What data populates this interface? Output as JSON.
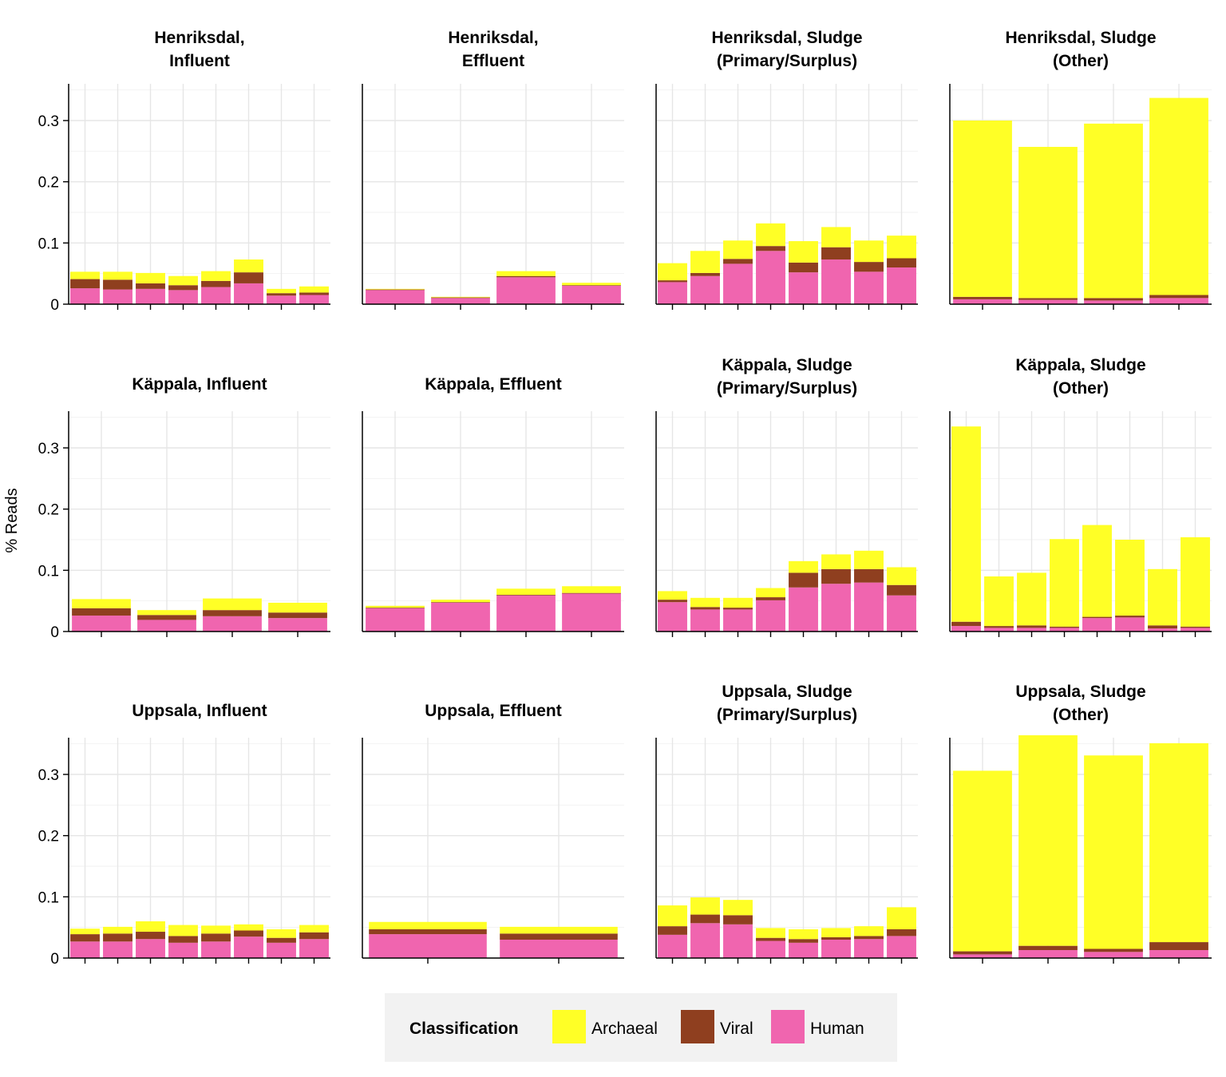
{
  "chart_data": {
    "type": "bar",
    "stacked": true,
    "ylabel": "% Reads",
    "xlabel": "",
    "ylim": [
      0,
      0.36
    ],
    "yticks": [
      0,
      0.1,
      0.2,
      0.3
    ],
    "ytick_labels": [
      "0",
      "0.1",
      "0.2",
      "0.3"
    ],
    "grid": true,
    "legend": {
      "title": "Classification",
      "placement": "bottom",
      "entries": [
        {
          "name": "Archaeal",
          "color": "#FFFF26"
        },
        {
          "name": "Viral",
          "color": "#8F3F1F"
        },
        {
          "name": "Human",
          "color": "#F065AF"
        }
      ]
    },
    "series_order": [
      "Human",
      "Viral",
      "Archaeal"
    ],
    "panels": [
      {
        "title": [
          "Henriksdal,",
          "Influent"
        ],
        "Human": [
          0.026,
          0.024,
          0.025,
          0.023,
          0.028,
          0.034,
          0.014,
          0.015
        ],
        "Viral": [
          0.015,
          0.016,
          0.009,
          0.008,
          0.01,
          0.018,
          0.004,
          0.004
        ],
        "Archaeal": [
          0.012,
          0.013,
          0.017,
          0.015,
          0.016,
          0.021,
          0.007,
          0.01
        ]
      },
      {
        "title": [
          "Henriksdal,",
          "Effluent"
        ],
        "Human": [
          0.023,
          0.01,
          0.044,
          0.03
        ],
        "Viral": [
          0.001,
          0.001,
          0.002,
          0.001
        ],
        "Archaeal": [
          0.001,
          0.001,
          0.008,
          0.004
        ]
      },
      {
        "title": [
          "Henriksdal, Sludge",
          "(Primary/Surplus)"
        ],
        "Human": [
          0.036,
          0.046,
          0.066,
          0.087,
          0.052,
          0.073,
          0.053,
          0.06
        ],
        "Viral": [
          0.003,
          0.005,
          0.008,
          0.008,
          0.016,
          0.02,
          0.016,
          0.015
        ],
        "Archaeal": [
          0.028,
          0.036,
          0.03,
          0.037,
          0.035,
          0.033,
          0.035,
          0.037
        ]
      },
      {
        "title": [
          "Henriksdal, Sludge",
          "(Other)"
        ],
        "Human": [
          0.008,
          0.007,
          0.006,
          0.01
        ],
        "Viral": [
          0.004,
          0.003,
          0.004,
          0.005
        ],
        "Archaeal": [
          0.288,
          0.247,
          0.285,
          0.322
        ]
      },
      {
        "title": [
          "Käppala, Influent"
        ],
        "Human": [
          0.026,
          0.019,
          0.025,
          0.022
        ],
        "Viral": [
          0.012,
          0.008,
          0.01,
          0.009
        ],
        "Archaeal": [
          0.015,
          0.008,
          0.019,
          0.016
        ]
      },
      {
        "title": [
          "Käppala, Effluent"
        ],
        "Human": [
          0.038,
          0.047,
          0.059,
          0.062
        ],
        "Viral": [
          0.001,
          0.001,
          0.001,
          0.001
        ],
        "Archaeal": [
          0.003,
          0.004,
          0.01,
          0.011
        ]
      },
      {
        "title": [
          "Käppala, Sludge",
          "(Primary/Surplus)"
        ],
        "Human": [
          0.048,
          0.036,
          0.036,
          0.051,
          0.072,
          0.078,
          0.08,
          0.059
        ],
        "Viral": [
          0.004,
          0.004,
          0.003,
          0.005,
          0.024,
          0.024,
          0.022,
          0.017
        ],
        "Archaeal": [
          0.014,
          0.015,
          0.016,
          0.015,
          0.019,
          0.024,
          0.03,
          0.029
        ]
      },
      {
        "title": [
          "Käppala, Sludge",
          "(Other)"
        ],
        "Human": [
          0.009,
          0.006,
          0.006,
          0.006,
          0.022,
          0.023,
          0.005,
          0.006
        ],
        "Viral": [
          0.007,
          0.003,
          0.004,
          0.002,
          0.002,
          0.003,
          0.005,
          0.002
        ],
        "Archaeal": [
          0.319,
          0.081,
          0.086,
          0.143,
          0.15,
          0.124,
          0.092,
          0.146
        ]
      },
      {
        "title": [
          "Uppsala, Influent"
        ],
        "Human": [
          0.027,
          0.027,
          0.031,
          0.025,
          0.027,
          0.035,
          0.025,
          0.031
        ],
        "Viral": [
          0.012,
          0.013,
          0.012,
          0.011,
          0.013,
          0.01,
          0.008,
          0.011
        ],
        "Archaeal": [
          0.009,
          0.011,
          0.017,
          0.018,
          0.013,
          0.01,
          0.014,
          0.012
        ]
      },
      {
        "title": [
          "Uppsala, Effluent"
        ],
        "Human": [
          0.039,
          0.03
        ],
        "Viral": [
          0.008,
          0.01
        ],
        "Archaeal": [
          0.012,
          0.011
        ]
      },
      {
        "title": [
          "Uppsala, Sludge",
          "(Primary/Surplus)"
        ],
        "Human": [
          0.038,
          0.057,
          0.055,
          0.028,
          0.025,
          0.03,
          0.031,
          0.036
        ],
        "Viral": [
          0.014,
          0.014,
          0.015,
          0.005,
          0.006,
          0.004,
          0.005,
          0.011
        ],
        "Archaeal": [
          0.034,
          0.028,
          0.025,
          0.016,
          0.016,
          0.015,
          0.016,
          0.036
        ]
      },
      {
        "title": [
          "Uppsala, Sludge",
          "(Other)"
        ],
        "Human": [
          0.006,
          0.013,
          0.01,
          0.013
        ],
        "Viral": [
          0.005,
          0.007,
          0.005,
          0.013
        ],
        "Archaeal": [
          0.295,
          0.344,
          0.316,
          0.325
        ]
      }
    ]
  }
}
